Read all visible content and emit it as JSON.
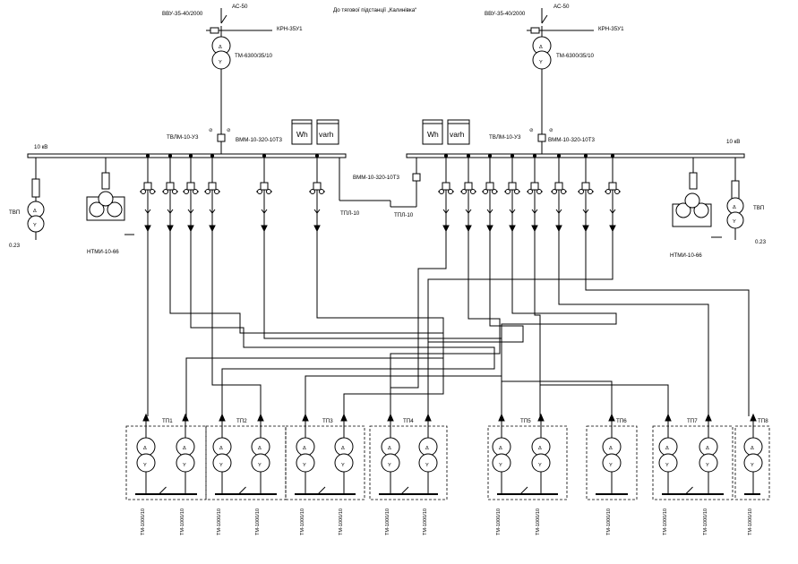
{
  "title": "До тягової підстанції „Калинівка“",
  "left": {
    "line": "АС-50",
    "breaker": "ВВУ-35-40/2000",
    "cabinet": "КРН-35У1",
    "transformer": "ТМ-6300/35/10",
    "current_tr": "ТВЛМ-10-У3",
    "incomer": "ВММ-10-320-10Т3",
    "bus_voltage": "10 кВ",
    "aux_tr": "ТВП",
    "aux_voltage": "0.23",
    "vt": "НТМИ-10-66",
    "meters": [
      "Wh",
      "varh"
    ]
  },
  "right": {
    "line": "АС-50",
    "breaker": "ВВУ-35-40/2000",
    "cabinet": "КРН-35У1",
    "transformer": "ТМ-6300/35/10",
    "current_tr": "ТВЛМ-10-У3",
    "incomer": "ВММ-10-320-10Т3",
    "bus_voltage": "10 кВ",
    "aux_tr": "ТВП",
    "aux_voltage": "0.23",
    "vt": "НТМИ-10-66",
    "meters": [
      "Wh",
      "varh"
    ]
  },
  "sectional": {
    "breaker": "ВММ-10-320-10Т3",
    "left_tr": "ТПЛ-10",
    "right_tr": "ТПЛ-10"
  },
  "substations": [
    {
      "name": "ТП1",
      "transformers": [
        "ТМ-1000/10",
        "ТМ-1000/10"
      ]
    },
    {
      "name": "ТП2",
      "transformers": [
        "ТМ-1000/10",
        "ТМ-1000/10"
      ]
    },
    {
      "name": "ТП3",
      "transformers": [
        "ТМ-1000/10",
        "ТМ-1000/10"
      ]
    },
    {
      "name": "ТП4",
      "transformers": [
        "ТМ-1000/10",
        "ТМ-1000/10"
      ]
    },
    {
      "name": "ТП5",
      "transformers": [
        "ТМ-1000/10",
        "ТМ-1000/10"
      ]
    },
    {
      "name": "ТП6",
      "transformers": [
        "ТМ-1000/10"
      ]
    },
    {
      "name": "ТП7",
      "transformers": [
        "ТМ-1000/10",
        "ТМ-1000/10"
      ]
    },
    {
      "name": "ТП8",
      "transformers": [
        "ТМ-1000/10"
      ]
    }
  ]
}
